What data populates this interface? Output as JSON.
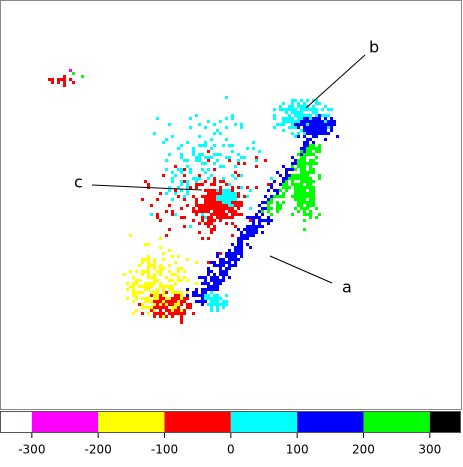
{
  "chart_data": {
    "type": "colorbar",
    "annotations": [
      "a",
      "b",
      "c"
    ],
    "xlim": [
      -348,
      347
    ],
    "xticks": [
      -300,
      -200,
      -100,
      0,
      100,
      200,
      300
    ],
    "colors": [
      "#ffffff",
      "#ff00ff",
      "#ffff00",
      "#ff0000",
      "#00ffff",
      "#0000ff",
      "#00ff00",
      "#000000"
    ]
  }
}
